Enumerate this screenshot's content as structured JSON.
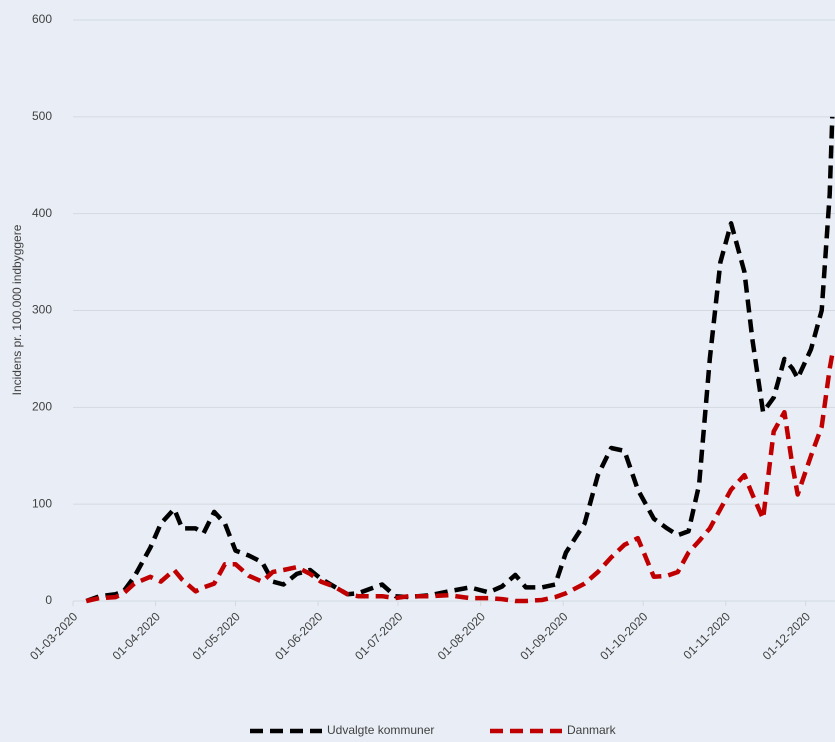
{
  "chart_data": {
    "type": "line",
    "y_label": "Incidens pr. 100.000 indbyggere",
    "x": [
      "06-03-2020",
      "11-03-2020",
      "17-03-2020",
      "20-03-2020",
      "24-03-2020",
      "30-03-2020",
      "03-04-2020",
      "08-04-2020",
      "11-04-2020",
      "16-04-2020",
      "19-04-2020",
      "23-04-2020",
      "27-04-2020",
      "01-05-2020",
      "06-05-2020",
      "11-05-2020",
      "15-05-2020",
      "19-05-2020",
      "24-05-2020",
      "29-05-2020",
      "02-06-2020",
      "07-06-2020",
      "12-06-2020",
      "16-06-2020",
      "20-06-2020",
      "25-06-2020",
      "30-06-2020",
      "05-07-2020",
      "13-07-2020",
      "20-07-2020",
      "28-07-2020",
      "04-08-2020",
      "09-08-2020",
      "14-08-2020",
      "18-08-2020",
      "24-08-2020",
      "29-08-2020",
      "02-09-2020",
      "09-09-2020",
      "14-09-2020",
      "19-09-2020",
      "24-09-2020",
      "29-09-2020",
      "05-10-2020",
      "10-10-2020",
      "14-10-2020",
      "18-10-2020",
      "22-10-2020",
      "26-10-2020",
      "30-10-2020",
      "03-11-2020",
      "08-11-2020",
      "11-11-2020",
      "15-11-2020",
      "19-11-2020",
      "23-11-2020",
      "26-11-2020",
      "28-11-2020",
      "03-12-2020",
      "07-12-2020",
      "10-12-2020",
      "11-12-2020"
    ],
    "series": [
      {
        "name": "Udvalgte kommuner",
        "color": "#000000",
        "values": [
          0,
          5,
          7,
          10,
          25,
          55,
          80,
          95,
          75,
          75,
          70,
          92,
          80,
          52,
          47,
          40,
          20,
          17,
          28,
          32,
          23,
          15,
          7,
          8,
          12,
          17,
          5,
          4,
          6,
          10,
          14,
          9,
          15,
          27,
          14,
          14,
          17,
          50,
          80,
          130,
          158,
          155,
          115,
          85,
          75,
          68,
          72,
          120,
          250,
          350,
          390,
          340,
          270,
          195,
          210,
          250,
          240,
          230,
          260,
          300,
          420,
          500
        ]
      },
      {
        "name": "Danmark",
        "color": "#c00000",
        "values": [
          0,
          3,
          4,
          8,
          18,
          25,
          20,
          32,
          22,
          10,
          14,
          18,
          38,
          38,
          26,
          20,
          30,
          32,
          35,
          28,
          20,
          15,
          7,
          5,
          5,
          5,
          3,
          5,
          5,
          6,
          3,
          3,
          2,
          0,
          0,
          1,
          4,
          8,
          18,
          30,
          45,
          58,
          65,
          25,
          26,
          30,
          50,
          62,
          75,
          95,
          115,
          130,
          110,
          85,
          175,
          195,
          140,
          110,
          150,
          180,
          240,
          255
        ]
      }
    ],
    "xlim": [
      "01-03-2020",
      "12-12-2020"
    ],
    "xticks": [
      "01-03-2020",
      "01-04-2020",
      "01-05-2020",
      "01-06-2020",
      "01-07-2020",
      "01-08-2020",
      "01-09-2020",
      "01-10-2020",
      "01-11-2020",
      "01-12-2020"
    ],
    "ylim": [
      0,
      600
    ],
    "yticks": [
      0,
      100,
      200,
      300,
      400,
      500,
      600
    ],
    "grid": true,
    "legend": "bottom"
  }
}
